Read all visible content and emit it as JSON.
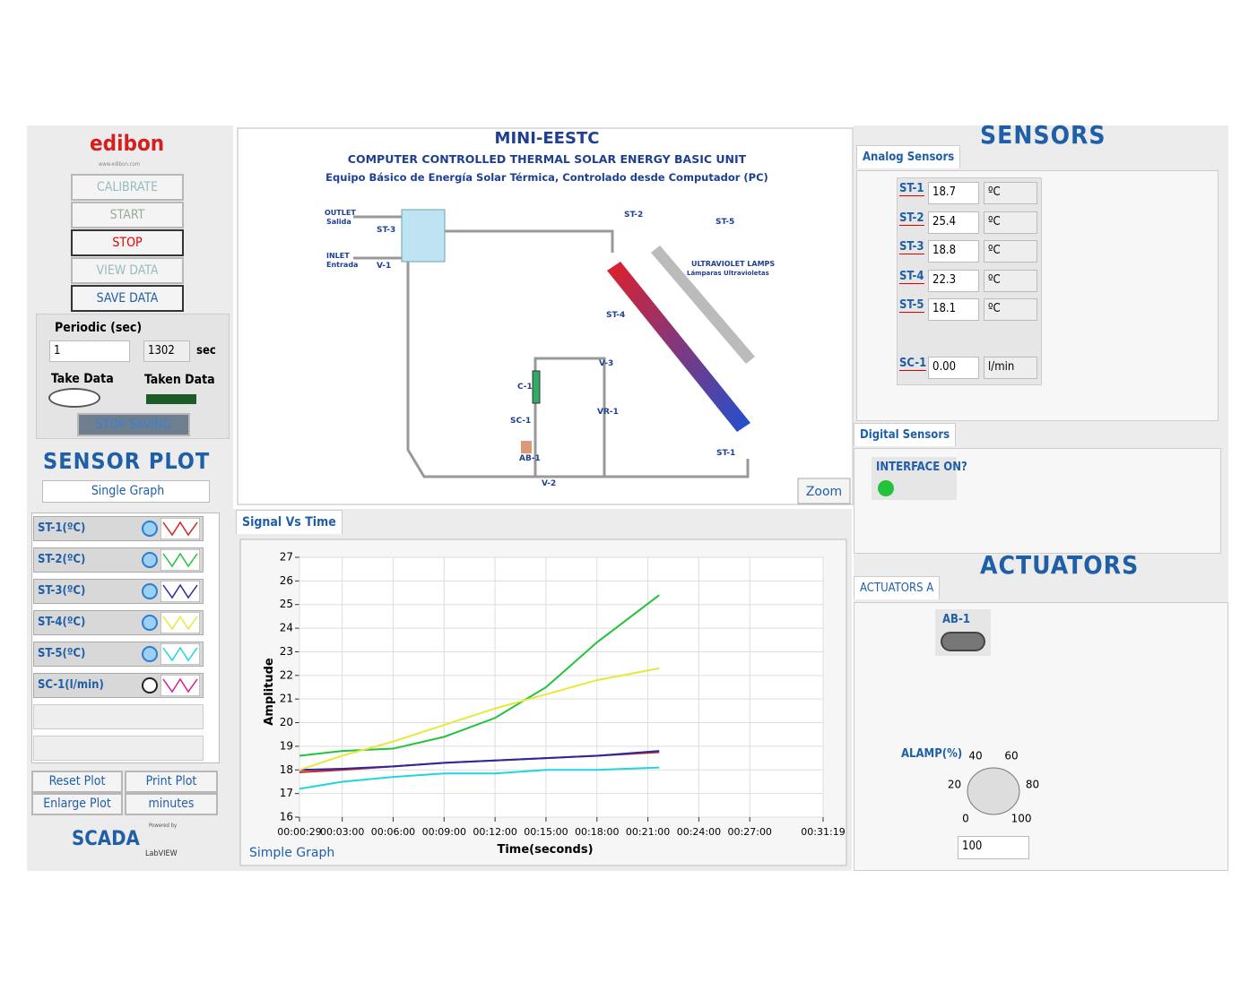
{
  "logo": {
    "brand": "edibon",
    "url": "www.edibon.com"
  },
  "buttons": [
    "CALIBRATE",
    "START",
    "STOP",
    "VIEW DATA",
    "SAVE DATA"
  ],
  "periodic": {
    "label": "Periodic (sec)",
    "value": "1",
    "count": "1302",
    "unit": "sec",
    "take_data": "Take Data",
    "taken_data": "Taken Data",
    "stop_saving": "STOP SAVING"
  },
  "sensor_plot": {
    "title": "SENSOR PLOT",
    "mode": "Single Graph",
    "extra_channel": "SC-1(l/min)",
    "reset": "Reset Plot",
    "print": "Print Plot",
    "enlarge": "Enlarge Plot",
    "units": "minutes"
  },
  "footer": {
    "scada": "SCADA",
    "powered": "Powered by",
    "labview": "LabVIEW"
  },
  "diagram": {
    "title": "MINI-EESTC",
    "subtitle": "COMPUTER CONTROLLED THERMAL SOLAR ENERGY BASIC UNIT",
    "subtitle_es": "Equipo Básico de Energía Solar Térmica, Controlado desde Computador (PC)",
    "outlet": "OUTLET",
    "outlet_es": "Salida",
    "inlet": "INLET",
    "inlet_es": "Entrada",
    "lamps": "ULTRAVIOLET LAMPS",
    "lamps_es": "Lámparas Ultravioletas",
    "tags": [
      "ST-3",
      "V-1",
      "ST-2",
      "ST-5",
      "ST-4",
      "V-3",
      "C-1",
      "SC-1",
      "VR-1",
      "AB-1",
      "V-2",
      "ST-1"
    ],
    "zoom": "Zoom"
  },
  "graph": {
    "tab": "Signal Vs Time",
    "footer": "Simple Graph"
  },
  "chart_data": {
    "type": "line",
    "ylabel": "Amplitude",
    "xlabel": "Time(seconds)",
    "xlim": [
      29,
      1879
    ],
    "ylim": [
      16,
      27
    ],
    "grid": true,
    "xticks": [
      {
        "value": 29,
        "label": "00:00:29"
      },
      {
        "value": 180,
        "label": "00:03:00"
      },
      {
        "value": 360,
        "label": "00:06:00"
      },
      {
        "value": 540,
        "label": "00:09:00"
      },
      {
        "value": 720,
        "label": "00:12:00"
      },
      {
        "value": 900,
        "label": "00:15:00"
      },
      {
        "value": 1080,
        "label": "00:18:00"
      },
      {
        "value": 1260,
        "label": "00:21:00"
      },
      {
        "value": 1440,
        "label": "00:24:00"
      },
      {
        "value": 1620,
        "label": "00:27:00"
      },
      {
        "value": 1879,
        "label": "00:31:19"
      }
    ],
    "yticks": [
      16,
      17,
      18,
      19,
      20,
      21,
      22,
      23,
      24,
      25,
      26,
      27
    ],
    "x": [
      29,
      180,
      360,
      540,
      720,
      900,
      1080,
      1300
    ],
    "series": [
      {
        "name": "ST-1(ºC)",
        "color": "#d42020",
        "values": [
          17.9,
          18.0,
          18.15,
          18.3,
          18.4,
          18.5,
          18.6,
          18.75
        ]
      },
      {
        "name": "ST-2(ºC)",
        "color": "#22c23a",
        "values": [
          18.6,
          18.8,
          18.9,
          19.4,
          20.2,
          21.5,
          23.4,
          25.4
        ]
      },
      {
        "name": "ST-3(ºC)",
        "color": "#2a2aa0",
        "values": [
          18.0,
          18.05,
          18.15,
          18.3,
          18.4,
          18.5,
          18.6,
          18.8
        ]
      },
      {
        "name": "ST-4(ºC)",
        "color": "#e8e83a",
        "values": [
          18.0,
          18.6,
          19.2,
          19.9,
          20.6,
          21.2,
          21.8,
          22.3
        ]
      },
      {
        "name": "ST-5(ºC)",
        "color": "#22d4dc",
        "values": [
          17.2,
          17.5,
          17.7,
          17.85,
          17.85,
          18.0,
          18.0,
          18.1
        ]
      }
    ]
  },
  "sensors": {
    "title": "SENSORS",
    "analog_tab": "Analog Sensors",
    "analog": [
      {
        "label": "ST-1",
        "value": "18.7",
        "unit": "ºC"
      },
      {
        "label": "ST-2",
        "value": "25.4",
        "unit": "ºC"
      },
      {
        "label": "ST-3",
        "value": "18.8",
        "unit": "ºC"
      },
      {
        "label": "ST-4",
        "value": "22.3",
        "unit": "ºC"
      },
      {
        "label": "ST-5",
        "value": "18.1",
        "unit": "ºC"
      },
      {
        "label": "SC-1",
        "value": "0.00",
        "unit": "l/min"
      }
    ],
    "digital_tab": "Digital Sensors",
    "interface": "INTERFACE ON?"
  },
  "actuators": {
    "title": "ACTUATORS",
    "tab": "ACTUATORS A",
    "ab1": "AB-1",
    "lamp": "ALAMP(%)",
    "dial": [
      0,
      20,
      40,
      60,
      80,
      100
    ],
    "lamp_value": "100"
  }
}
